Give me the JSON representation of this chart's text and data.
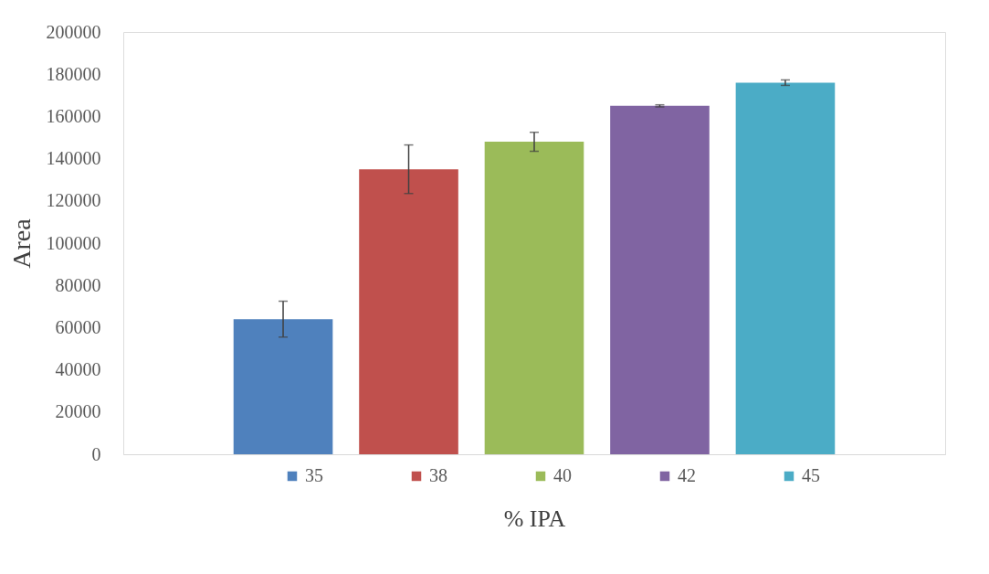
{
  "chart_data": {
    "type": "bar",
    "xlabel": "% IPA",
    "ylabel": "Area",
    "categories": [
      null
    ],
    "series": [
      {
        "name": "35",
        "color": "#4f81bd",
        "values": [
          64000
        ],
        "errors": [
          8500
        ]
      },
      {
        "name": "38",
        "color": "#c0504d",
        "values": [
          135000
        ],
        "errors": [
          11500
        ]
      },
      {
        "name": "40",
        "color": "#9bbb59",
        "values": [
          148000
        ],
        "errors": [
          4500
        ]
      },
      {
        "name": "42",
        "color": "#8064a2",
        "values": [
          165000
        ],
        "errors": [
          500
        ]
      },
      {
        "name": "45",
        "color": "#4bacc6",
        "values": [
          176000
        ],
        "errors": [
          1300
        ]
      }
    ],
    "ylim": [
      0,
      200000
    ],
    "yticks": [
      0,
      20000,
      40000,
      60000,
      80000,
      100000,
      120000,
      140000,
      160000,
      180000,
      200000
    ],
    "grid": false,
    "legend": "bottom"
  }
}
